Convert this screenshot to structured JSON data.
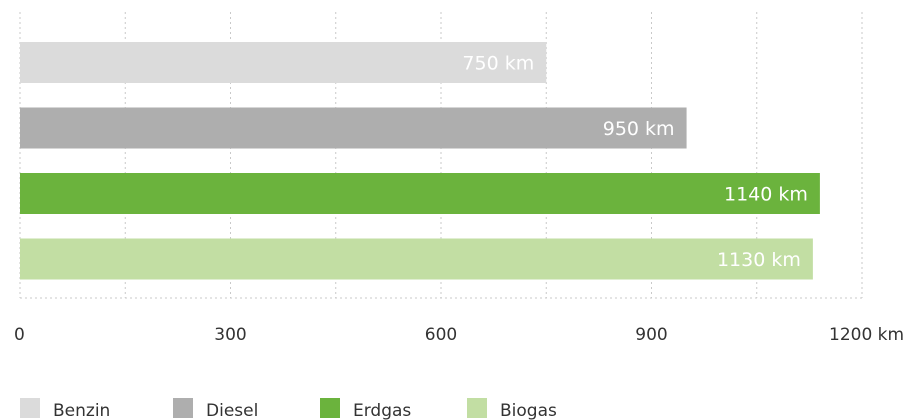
{
  "chart_data": {
    "type": "bar",
    "orientation": "horizontal",
    "categories": [
      "Benzin",
      "Diesel",
      "Erdgas",
      "Biogas"
    ],
    "values": [
      750,
      950,
      1140,
      1130
    ],
    "value_labels": [
      "750 km",
      "950 km",
      "1140 km",
      "1130 km"
    ],
    "colors": [
      "#dbdbdb",
      "#aeaeae",
      "#6bb33d",
      "#c2dea3"
    ],
    "xlim": [
      0,
      1200
    ],
    "xticks": [
      0,
      300,
      600,
      900,
      1200
    ],
    "xtick_labels": [
      "0",
      "300",
      "600",
      "900",
      "1200 km"
    ],
    "grid": true,
    "legend": {
      "position": "bottom-left",
      "entries": [
        "Benzin",
        "Diesel",
        "Erdgas",
        "Biogas"
      ]
    },
    "title": "",
    "xlabel": "",
    "ylabel": ""
  }
}
